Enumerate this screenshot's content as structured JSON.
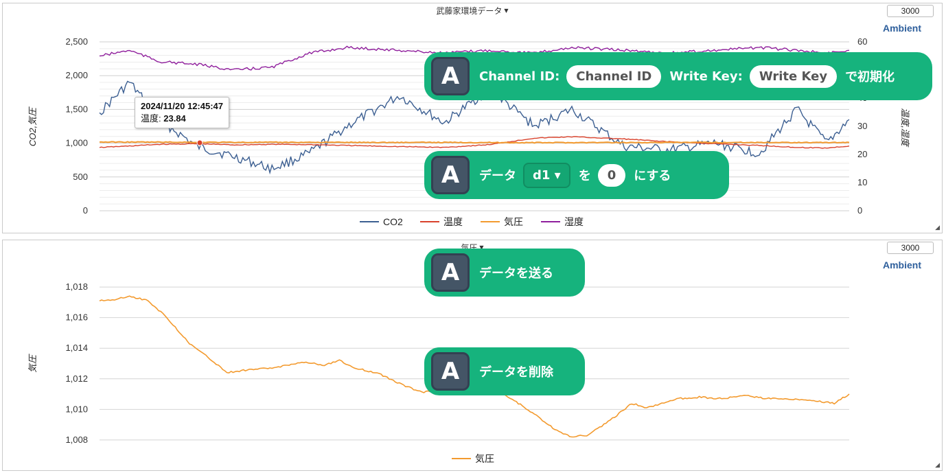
{
  "panel1": {
    "title": "武藤家環境データ",
    "interval_value": "3000",
    "ambient_label": "Ambient",
    "left_axis_label": "CO2,気圧",
    "right_axis_label": "温度,湿度",
    "left_ticks": [
      "2,500",
      "2,000",
      "1,500",
      "1,000",
      "500",
      "0"
    ],
    "right_ticks": [
      "60",
      "40",
      "30",
      "20",
      "10",
      "0"
    ],
    "legend": [
      {
        "name": "CO2",
        "color": "#3b5e91"
      },
      {
        "name": "温度",
        "color": "#d9412b"
      },
      {
        "name": "気圧",
        "color": "#f39a2e"
      },
      {
        "name": "湿度",
        "color": "#8f1e9c"
      }
    ],
    "tooltip": {
      "date": "2024/11/20 12:45:47",
      "label": "温度: ",
      "value": "23.84"
    }
  },
  "panel2": {
    "title": "気圧",
    "interval_value": "3000",
    "ambient_label": "Ambient",
    "left_axis_label": "気圧",
    "left_ticks": [
      "1,018",
      "1,016",
      "1,014",
      "1,012",
      "1,010",
      "1,008"
    ],
    "legend": [
      {
        "name": "気圧",
        "color": "#f39a2e"
      }
    ]
  },
  "blocks": {
    "init": {
      "badge": "A",
      "channel_label": "Channel ID:",
      "channel_placeholder": "Channel ID",
      "key_label": "Write Key:",
      "key_placeholder": "Write Key",
      "suffix": "で初期化"
    },
    "set_data": {
      "badge": "A",
      "prefix": "データ",
      "dropdown": "d1 ▾",
      "mid": "を",
      "value": "0",
      "suffix": "にする"
    },
    "send": {
      "badge": "A",
      "label": "データを送る"
    },
    "delete": {
      "badge": "A",
      "label": "データを削除"
    }
  },
  "chart_data": [
    {
      "type": "line",
      "title": "武藤家環境データ",
      "ylabel": "CO2,気圧",
      "y2label": "温度,湿度",
      "ylim": [
        0,
        2500
      ],
      "y2lim": [
        0,
        60
      ],
      "grid": true,
      "legend_position": "bottom",
      "x_relative": [
        0,
        0.04,
        0.08,
        0.13,
        0.18,
        0.23,
        0.28,
        0.33,
        0.4,
        0.46,
        0.52,
        0.58,
        0.63,
        0.7,
        0.76,
        0.82,
        0.88,
        0.93,
        0.97,
        1.0
      ],
      "series": [
        {
          "name": "CO2",
          "axis": "left",
          "color": "#3b5e91",
          "values": [
            1450,
            1900,
            1350,
            950,
            800,
            620,
            850,
            1250,
            1700,
            1300,
            1800,
            1250,
            1500,
            950,
            900,
            1000,
            850,
            1500,
            1000,
            1350
          ]
        },
        {
          "name": "温度",
          "axis": "right",
          "color": "#d9412b",
          "values": [
            22.5,
            23.0,
            23.6,
            23.8,
            23.4,
            23.6,
            23.5,
            23.2,
            22.8,
            22.5,
            23.5,
            25.8,
            26.3,
            25.5,
            24.5,
            23.8,
            23.2,
            22.5,
            22.3,
            23.0
          ]
        },
        {
          "name": "気圧",
          "axis": "left",
          "color": "#f39a2e",
          "values": [
            1017,
            1017,
            1016,
            1014,
            1013,
            1013,
            1013,
            1012,
            1011,
            1012,
            1010,
            1008,
            1009,
            1010,
            1011,
            1011,
            1011,
            1011,
            1010,
            1011
          ]
        },
        {
          "name": "湿度",
          "axis": "right",
          "color": "#8f1e9c",
          "values": [
            55,
            57,
            53,
            52,
            50,
            51,
            56,
            58,
            57,
            56,
            57,
            56,
            58,
            57,
            56,
            57,
            58,
            57,
            56,
            57
          ]
        }
      ]
    },
    {
      "type": "line",
      "title": "気圧",
      "ylabel": "気圧",
      "ylim": [
        1007.5,
        1018.5
      ],
      "grid": true,
      "legend_position": "bottom",
      "x_relative": [
        0,
        0.02,
        0.04,
        0.065,
        0.09,
        0.12,
        0.15,
        0.17,
        0.2,
        0.23,
        0.25,
        0.27,
        0.3,
        0.32,
        0.34,
        0.37,
        0.4,
        0.43,
        0.46,
        0.5,
        0.54,
        0.58,
        0.61,
        0.63,
        0.65,
        0.67,
        0.69,
        0.71,
        0.73,
        0.75,
        0.77,
        0.8,
        0.83,
        0.86,
        0.89,
        0.92,
        0.95,
        0.98,
        1.0
      ],
      "series": [
        {
          "name": "気圧",
          "color": "#f39a2e",
          "values": [
            1017.1,
            1017.2,
            1017.4,
            1017.1,
            1016.0,
            1014.3,
            1013.2,
            1012.4,
            1012.6,
            1012.7,
            1012.9,
            1013.1,
            1012.9,
            1013.2,
            1012.7,
            1012.4,
            1011.7,
            1011.1,
            1011.4,
            1011.6,
            1011.0,
            1009.7,
            1008.6,
            1008.2,
            1008.3,
            1008.9,
            1009.6,
            1010.4,
            1010.1,
            1010.4,
            1010.7,
            1010.8,
            1010.7,
            1010.9,
            1010.7,
            1010.7,
            1010.6,
            1010.4,
            1011.0
          ]
        }
      ]
    }
  ]
}
